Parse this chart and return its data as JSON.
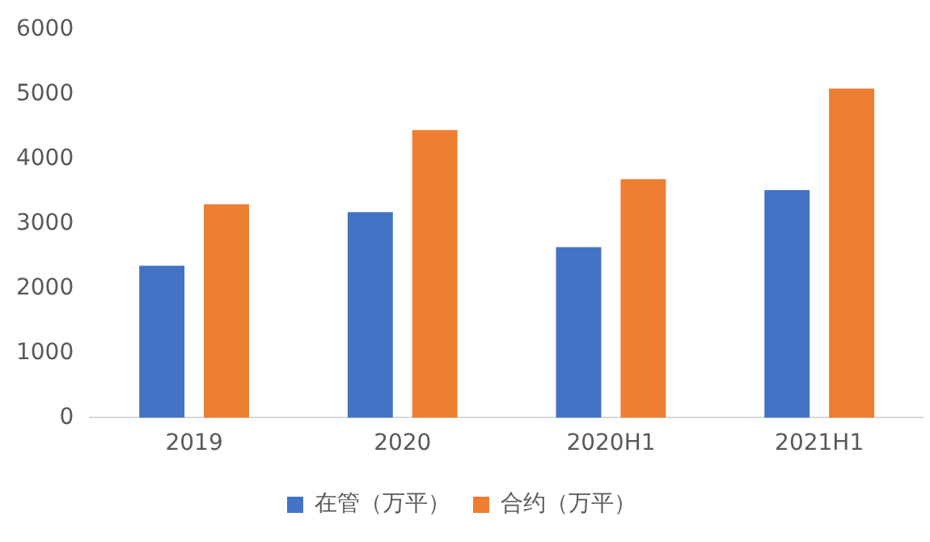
{
  "chart_data": {
    "type": "bar",
    "categories": [
      "2019",
      "2020",
      "2020H1",
      "2021H1"
    ],
    "series": [
      {
        "name": "在管（万平）",
        "color": "#4472c4",
        "values": [
          2350,
          3180,
          2640,
          3520
        ]
      },
      {
        "name": "合约（万平）",
        "color": "#ed7d31",
        "values": [
          3300,
          4450,
          3690,
          5090
        ]
      }
    ],
    "ylim": [
      0,
      6000
    ],
    "yticks": [
      0,
      1000,
      2000,
      3000,
      4000,
      5000,
      6000
    ],
    "grid": false,
    "legend": "bottom"
  }
}
